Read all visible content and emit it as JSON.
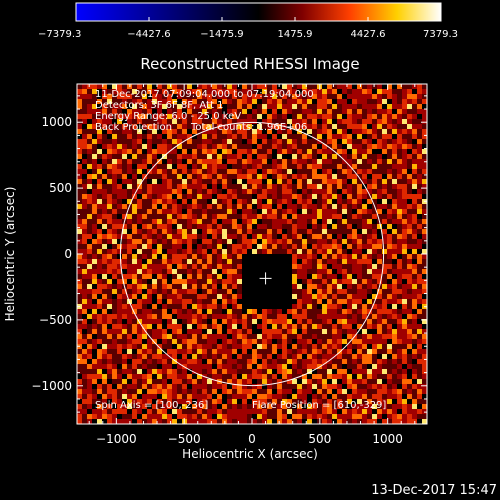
{
  "chart_data": {
    "type": "heatmap",
    "title": "Reconstructed RHESSI Image",
    "xlabel": "Heliocentric X (arcsec)",
    "ylabel": "Heliocentric Y (arcsec)",
    "xlim": [
      -1290,
      1290
    ],
    "ylim": [
      -1290,
      1290
    ],
    "x_ticks": [
      -1000,
      -500,
      0,
      500,
      1000
    ],
    "x_tick_labels": [
      "−1000",
      "−500",
      "0",
      "500",
      "1000"
    ],
    "y_ticks": [
      -1000,
      -500,
      0,
      500,
      1000
    ],
    "y_tick_labels": [
      "−1000",
      "−500",
      "0",
      "500",
      "1000"
    ],
    "colorbar": {
      "min": -7379.3,
      "max": 7379.3,
      "tick_values": [
        -7379.3,
        -4427.6,
        -1475.9,
        1475.9,
        4427.6,
        7379.3
      ],
      "tick_labels": [
        "−7379.3",
        "−4427.6",
        "−1475.9",
        "1475.9",
        "4427.6",
        "7379.3"
      ],
      "colormap": [
        "#0000ff",
        "#000000",
        "#7f0000",
        "#ff4000",
        "#ffd000",
        "#ffffff"
      ]
    },
    "solar_limb_radius": 970,
    "flare_position": [
      610,
      -329
    ],
    "spin_axis": [
      100,
      -236
    ],
    "annotations": {
      "time_range": "11-Dec-2017 07:09:04.000 to 07:19:04.000",
      "detectors": "Detectors: 3F 6F 8F, Att 1",
      "energy": "Energy Range: 6.0 - 25.0 keV",
      "method": "Back Projection",
      "counts": "Total counts: 1.96E+06",
      "spin_axis": "Spin Axis = [100,-236]",
      "flare_position": "Flare Position = [610,-329]"
    }
  },
  "footer": {
    "timestamp": "13-Dec-2017 15:47"
  },
  "colors": {
    "background": "#000000",
    "foreground": "#ffffff"
  }
}
